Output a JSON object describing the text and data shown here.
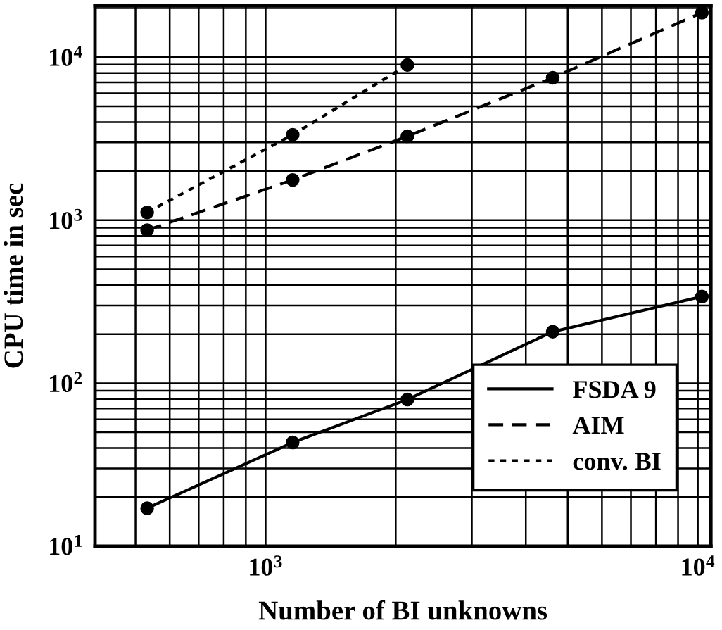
{
  "chart_data": {
    "type": "line",
    "xlabel": "Number of BI unknowns",
    "ylabel": "CPU time in sec",
    "x": [
      532,
      1155,
      2128,
      4616,
      10220
    ],
    "series": [
      {
        "name": "FSDA 9",
        "color": "#000000",
        "line_style": "solid",
        "values": [
          17.1,
          43.3,
          79.4,
          207,
          340
        ]
      },
      {
        "name": "AIM",
        "color": "#000000",
        "line_style": "dashed",
        "values": [
          869,
          1766,
          3273,
          7480,
          18750
        ]
      },
      {
        "name": "conv. BI",
        "color": "#000000",
        "line_style": "dotted",
        "values": [
          1117,
          3342,
          8950,
          null,
          null
        ]
      }
    ],
    "log": "xy",
    "marker": "circle",
    "grid": true,
    "legend": "bottom right",
    "xlim": [
      403,
      10720
    ],
    "ylim": [
      10,
      20700
    ],
    "xticks": [
      {
        "value": 500,
        "label": null
      },
      {
        "value": 600,
        "label": null
      },
      {
        "value": 700,
        "label": null
      },
      {
        "value": 800,
        "label": null
      },
      {
        "value": 900,
        "label": null
      },
      {
        "value": 1000,
        "label": "10$^{3}$"
      },
      {
        "value": 2000,
        "label": null
      },
      {
        "value": 3000,
        "label": null
      },
      {
        "value": 4000,
        "label": null
      },
      {
        "value": 5000,
        "label": null
      },
      {
        "value": 6000,
        "label": null
      },
      {
        "value": 7000,
        "label": null
      },
      {
        "value": 8000,
        "label": null
      },
      {
        "value": 9000,
        "label": null
      },
      {
        "value": 10000,
        "label": "10$^{4}$"
      }
    ],
    "yticks": [
      {
        "value": 10,
        "label": "10$^{1}$"
      },
      {
        "value": 20,
        "label": null
      },
      {
        "value": 30,
        "label": null
      },
      {
        "value": 40,
        "label": null
      },
      {
        "value": 50,
        "label": null
      },
      {
        "value": 60,
        "label": null
      },
      {
        "value": 70,
        "label": null
      },
      {
        "value": 80,
        "label": null
      },
      {
        "value": 90,
        "label": null
      },
      {
        "value": 100,
        "label": "10$^{2}$"
      },
      {
        "value": 200,
        "label": null
      },
      {
        "value": 300,
        "label": null
      },
      {
        "value": 400,
        "label": null
      },
      {
        "value": 500,
        "label": null
      },
      {
        "value": 600,
        "label": null
      },
      {
        "value": 700,
        "label": null
      },
      {
        "value": 800,
        "label": null
      },
      {
        "value": 900,
        "label": null
      },
      {
        "value": 1000,
        "label": "10$^{3}$"
      },
      {
        "value": 2000,
        "label": null
      },
      {
        "value": 3000,
        "label": null
      },
      {
        "value": 4000,
        "label": null
      },
      {
        "value": 5000,
        "label": null
      },
      {
        "value": 6000,
        "label": null
      },
      {
        "value": 7000,
        "label": null
      },
      {
        "value": 8000,
        "label": null
      },
      {
        "value": 9000,
        "label": null
      },
      {
        "value": 10000,
        "label": "10$^{4}$"
      },
      {
        "value": 20000,
        "label": null
      }
    ]
  }
}
